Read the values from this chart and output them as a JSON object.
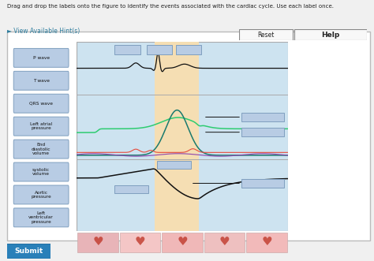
{
  "title_text": "Drag and drop the labels onto the figure to identify the events associated with the cardiac cycle. Use each label once.",
  "hint_text": "► View Available Hint(s)",
  "bg_outer": "#f0f0f0",
  "bg_panel": "#ffffff",
  "bg_chart": "#cde3f0",
  "bg_highlight": "#f5deb3",
  "submit_text": "Submit",
  "label_texts": [
    "P wave",
    "T wave",
    "QRS wave",
    "Left atrial\npressure",
    "End\ndiastolic\nvolume",
    "systolic\nvolume",
    "Aortic\npressure",
    "Left\nventricular\npressure"
  ],
  "label_color": "#b8cce4",
  "label_border": "#7f9fbf",
  "submit_bg": "#2980b9",
  "title_color": "#222222",
  "hint_color": "#2e7d9e"
}
